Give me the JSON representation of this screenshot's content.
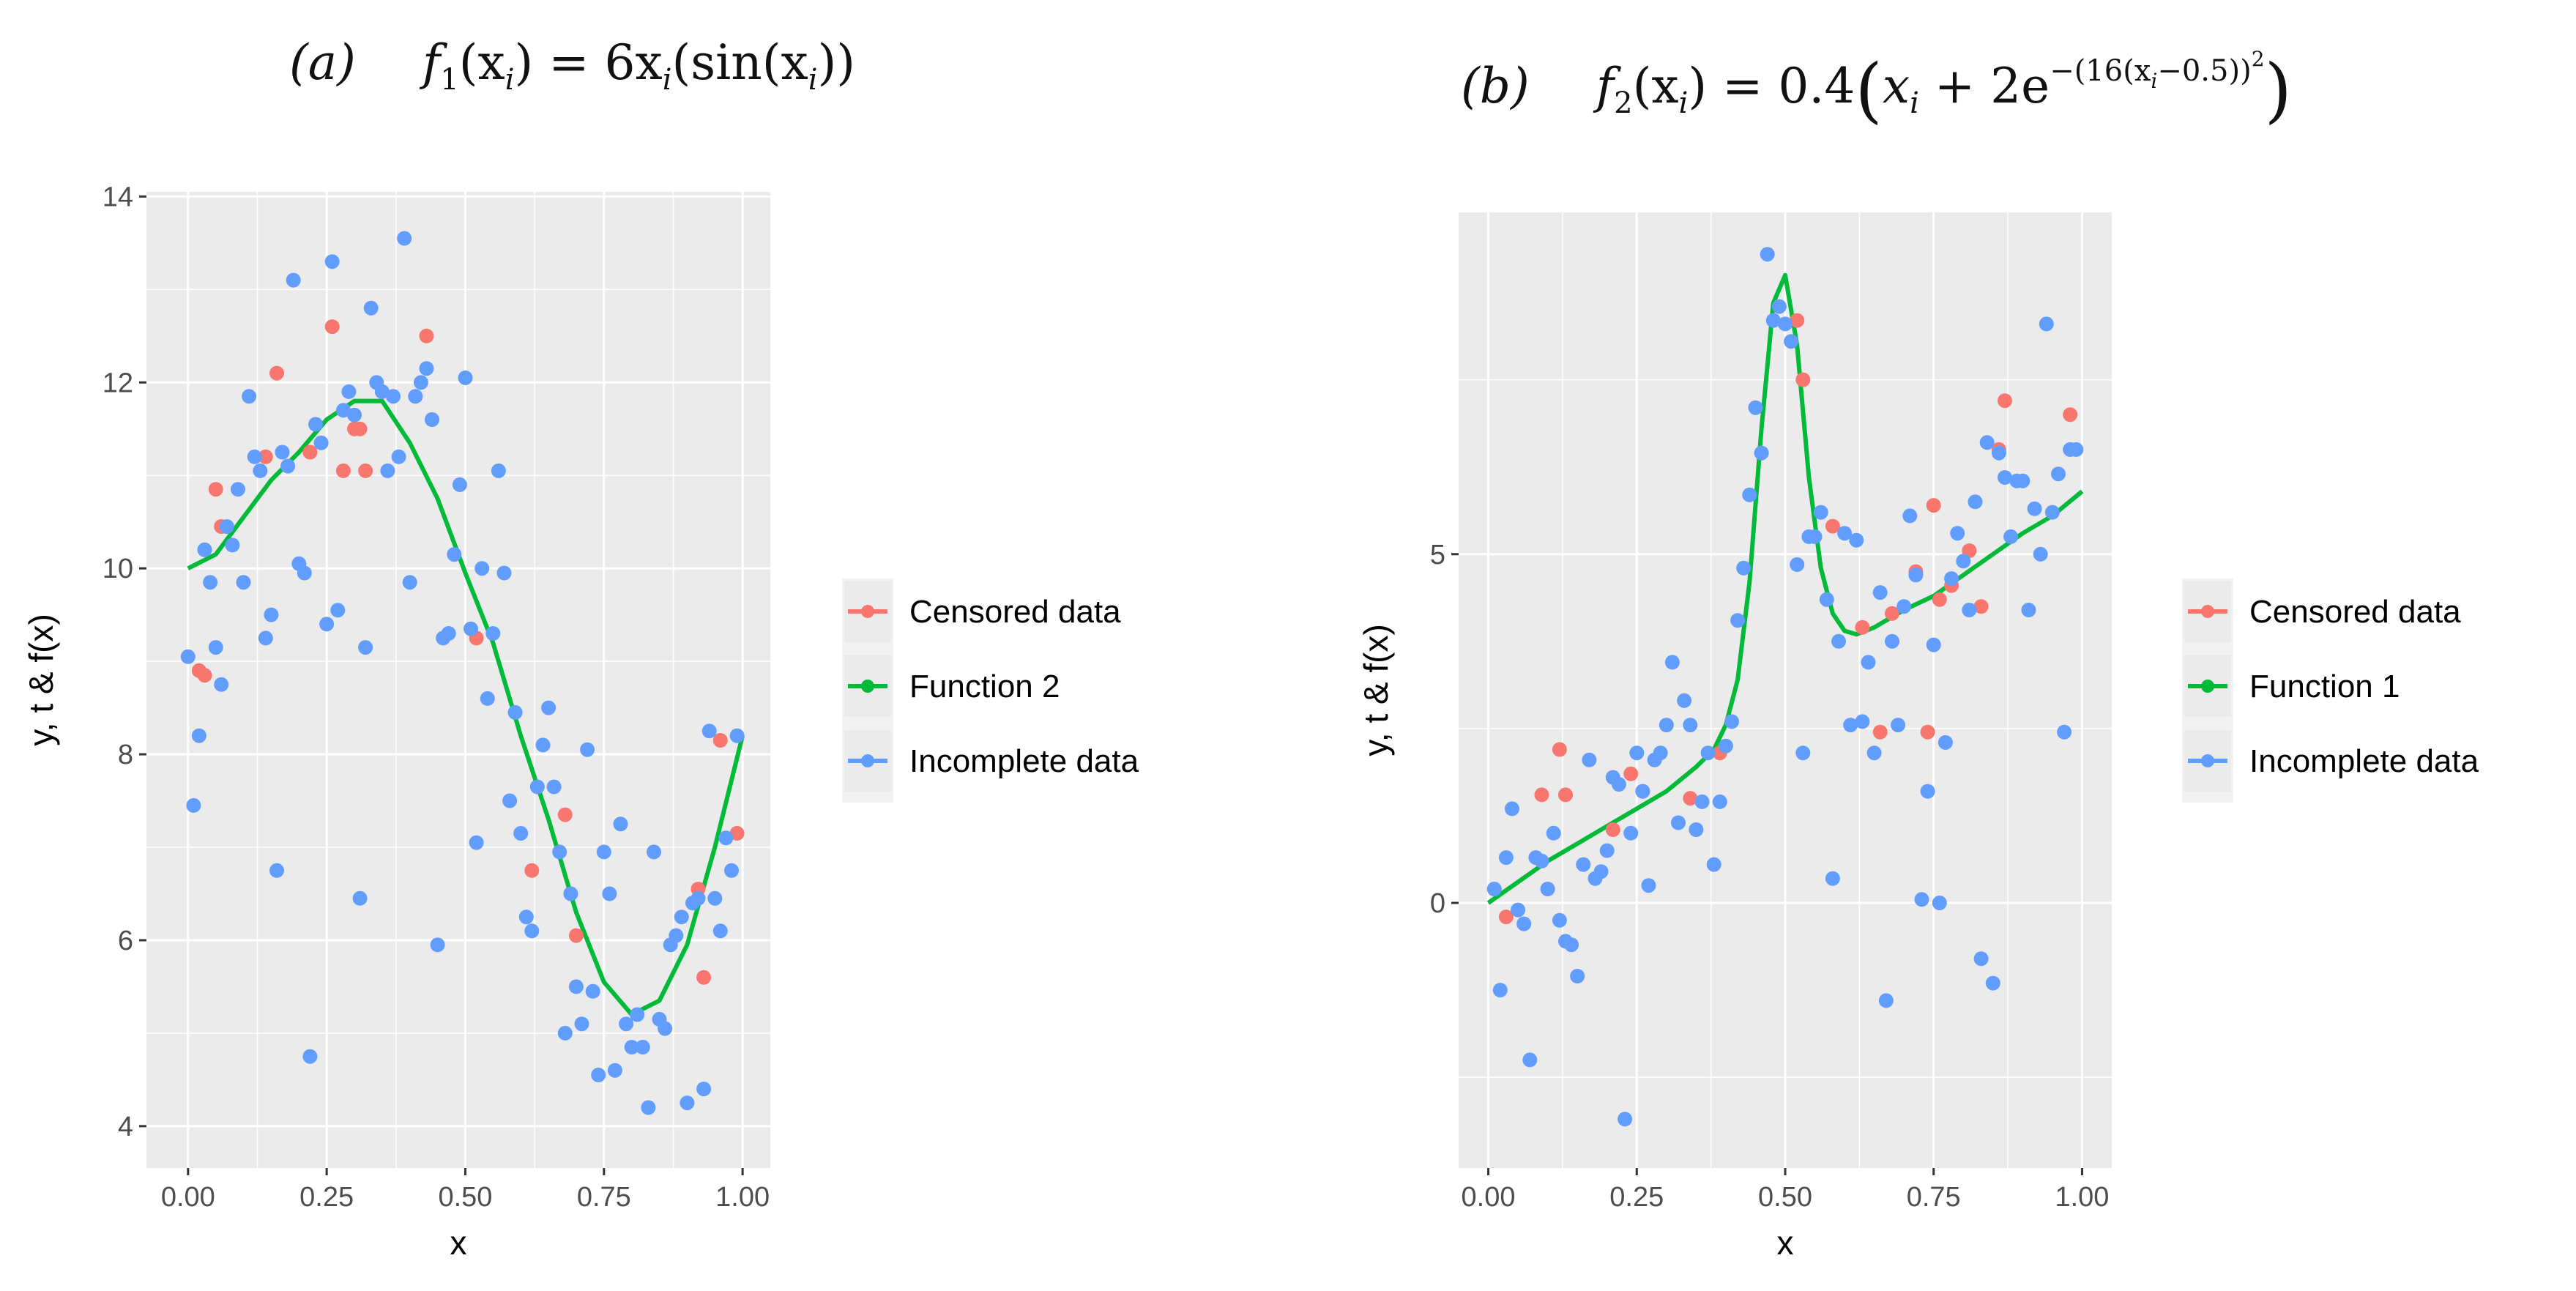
{
  "chart_data": [
    {
      "type": "scatter",
      "panel_label": "(a)",
      "formula": {
        "lhs": "f",
        "lhs_sub": "1",
        "arg": "(x",
        "arg_sub": "i",
        "rhs_text": ") = 6x",
        "rhs_sub": "i",
        "rhs_tail": "(sin(x",
        "rhs_sub2": "i",
        "rhs_end": "))"
      },
      "xlabel": "x",
      "ylabel": "y, t & f(x)",
      "xlim": [
        -0.075,
        1.05
      ],
      "ylim": [
        3.55,
        14.05
      ],
      "xticks": [
        0,
        0.25,
        0.5,
        0.75,
        1
      ],
      "xtick_labels": [
        "0.00",
        "0.25",
        "0.50",
        "0.75",
        "1.00"
      ],
      "yticks": [
        4,
        6,
        8,
        10,
        12,
        14
      ],
      "ytick_labels": [
        "4",
        "6",
        "8",
        "10",
        "12",
        "14"
      ],
      "colors": {
        "censored": "#F8766D",
        "function": "#00BA38",
        "incomplete": "#619CFF",
        "panel": "#EBEBEB",
        "grid": "#FFFFFF"
      },
      "legend": [
        {
          "key": "censored",
          "label": "Censored data"
        },
        {
          "key": "function",
          "label": "Function 2"
        },
        {
          "key": "incomplete",
          "label": "Incomplete data"
        }
      ],
      "series": [
        {
          "name": "Function 2",
          "key": "function",
          "mode": "line",
          "x": [
            0,
            0.05,
            0.1,
            0.15,
            0.2,
            0.25,
            0.3,
            0.35,
            0.4,
            0.45,
            0.5,
            0.55,
            0.6,
            0.65,
            0.7,
            0.75,
            0.8,
            0.85,
            0.9,
            0.95,
            1.0
          ],
          "y": [
            10.0,
            10.15,
            10.55,
            10.95,
            11.25,
            11.6,
            11.8,
            11.8,
            11.35,
            10.75,
            9.95,
            9.2,
            8.2,
            7.3,
            6.3,
            5.55,
            5.2,
            5.35,
            5.95,
            7.0,
            8.2
          ]
        },
        {
          "name": "Censored data",
          "key": "censored",
          "mode": "points",
          "x": [
            0.02,
            0.03,
            0.05,
            0.06,
            0.14,
            0.16,
            0.22,
            0.26,
            0.28,
            0.3,
            0.31,
            0.32,
            0.43,
            0.44,
            0.52,
            0.62,
            0.68,
            0.7,
            0.92,
            0.93,
            0.96,
            0.99
          ],
          "y": [
            8.9,
            8.85,
            10.85,
            10.45,
            11.2,
            12.1,
            11.25,
            12.6,
            11.05,
            11.5,
            11.5,
            11.05,
            12.5,
            11.6,
            9.25,
            6.75,
            7.35,
            6.05,
            6.55,
            5.6,
            8.15,
            7.15
          ]
        },
        {
          "name": "Incomplete data",
          "key": "incomplete",
          "mode": "points",
          "x": [
            0.0,
            0.01,
            0.02,
            0.03,
            0.04,
            0.05,
            0.06,
            0.07,
            0.08,
            0.09,
            0.1,
            0.11,
            0.12,
            0.13,
            0.14,
            0.15,
            0.16,
            0.17,
            0.18,
            0.19,
            0.2,
            0.21,
            0.22,
            0.23,
            0.24,
            0.25,
            0.26,
            0.27,
            0.28,
            0.29,
            0.3,
            0.31,
            0.32,
            0.33,
            0.34,
            0.35,
            0.36,
            0.37,
            0.38,
            0.39,
            0.4,
            0.41,
            0.42,
            0.43,
            0.44,
            0.45,
            0.46,
            0.47,
            0.48,
            0.49,
            0.5,
            0.51,
            0.52,
            0.53,
            0.54,
            0.55,
            0.56,
            0.57,
            0.58,
            0.59,
            0.6,
            0.61,
            0.62,
            0.63,
            0.64,
            0.65,
            0.66,
            0.67,
            0.68,
            0.69,
            0.7,
            0.71,
            0.72,
            0.73,
            0.74,
            0.75,
            0.76,
            0.77,
            0.78,
            0.79,
            0.8,
            0.81,
            0.82,
            0.83,
            0.84,
            0.85,
            0.86,
            0.87,
            0.88,
            0.89,
            0.9,
            0.91,
            0.92,
            0.93,
            0.94,
            0.95,
            0.96,
            0.97,
            0.98,
            0.99
          ],
          "y": [
            9.05,
            7.45,
            8.2,
            10.2,
            9.85,
            9.15,
            8.75,
            10.45,
            10.25,
            10.85,
            9.85,
            11.85,
            11.2,
            11.05,
            9.25,
            9.5,
            6.75,
            11.25,
            11.1,
            13.1,
            10.05,
            9.95,
            4.75,
            11.55,
            11.35,
            9.4,
            13.3,
            9.55,
            11.7,
            11.9,
            11.65,
            6.45,
            9.15,
            12.8,
            12.0,
            11.9,
            11.05,
            11.85,
            11.2,
            13.55,
            9.85,
            11.85,
            12.0,
            12.15,
            11.6,
            5.95,
            9.25,
            9.3,
            10.15,
            10.9,
            12.05,
            9.35,
            7.05,
            10.0,
            8.6,
            9.3,
            11.05,
            9.95,
            7.5,
            8.45,
            7.15,
            6.25,
            6.1,
            7.65,
            8.1,
            8.5,
            7.65,
            6.95,
            5.0,
            6.5,
            5.5,
            5.1,
            8.05,
            5.45,
            4.55,
            6.95,
            6.5,
            4.6,
            7.25,
            5.1,
            4.85,
            5.2,
            4.85,
            4.2,
            6.95,
            5.15,
            5.05,
            5.95,
            6.05,
            6.25,
            4.25,
            6.4,
            6.45,
            4.4,
            8.25,
            6.45,
            6.1,
            7.1,
            6.75,
            8.2
          ]
        }
      ]
    },
    {
      "type": "scatter",
      "panel_label": "(b)",
      "formula": {
        "lhs": "f",
        "lhs_sub": "2",
        "arg": "(x",
        "arg_sub": "i",
        "rhs_text": ") = 0.4",
        "paren_open": "(",
        "inner_x": "x",
        "inner_x_sub": "i",
        "plus_text": " + 2e",
        "exp_text": "−(16(x",
        "exp_sub": "i",
        "exp_tail": "−0.5))",
        "exp_pow": "2",
        "paren_close": ")"
      },
      "xlabel": "x",
      "ylabel": "y, t & f(x)",
      "xlim": [
        -0.05,
        1.05
      ],
      "ylim": [
        -3.8,
        9.9
      ],
      "xticks": [
        0,
        0.25,
        0.5,
        0.75,
        1
      ],
      "xtick_labels": [
        "0.00",
        "0.25",
        "0.50",
        "0.75",
        "1.00"
      ],
      "yticks": [
        0,
        5
      ],
      "ytick_labels": [
        "0",
        "5"
      ],
      "yminor": [
        -2.5,
        2.5,
        7.5
      ],
      "colors": {
        "censored": "#F8766D",
        "function": "#00BA38",
        "incomplete": "#619CFF",
        "panel": "#EBEBEB",
        "grid": "#FFFFFF"
      },
      "legend": [
        {
          "key": "censored",
          "label": "Censored data"
        },
        {
          "key": "function",
          "label": "Function 1"
        },
        {
          "key": "incomplete",
          "label": "Incomplete data"
        }
      ],
      "series": [
        {
          "name": "Function 1",
          "key": "function",
          "mode": "line",
          "x": [
            0,
            0.05,
            0.1,
            0.15,
            0.2,
            0.25,
            0.3,
            0.35,
            0.38,
            0.4,
            0.42,
            0.44,
            0.46,
            0.48,
            0.5,
            0.52,
            0.54,
            0.56,
            0.58,
            0.6,
            0.62,
            0.65,
            0.7,
            0.75,
            0.8,
            0.85,
            0.9,
            0.95,
            1.0
          ],
          "y": [
            0.0,
            0.3,
            0.6,
            0.85,
            1.1,
            1.35,
            1.6,
            1.95,
            2.2,
            2.55,
            3.2,
            4.6,
            6.8,
            8.6,
            9.0,
            8.0,
            6.1,
            4.8,
            4.15,
            3.9,
            3.85,
            3.95,
            4.2,
            4.4,
            4.7,
            5.0,
            5.3,
            5.55,
            5.9
          ]
        },
        {
          "name": "Censored data",
          "key": "censored",
          "mode": "points",
          "x": [
            0.03,
            0.09,
            0.12,
            0.13,
            0.21,
            0.24,
            0.26,
            0.34,
            0.39,
            0.52,
            0.53,
            0.58,
            0.63,
            0.66,
            0.68,
            0.72,
            0.74,
            0.75,
            0.76,
            0.78,
            0.81,
            0.83,
            0.86,
            0.87,
            0.98
          ],
          "y": [
            -0.2,
            1.55,
            2.2,
            1.55,
            1.05,
            1.85,
            1.6,
            1.5,
            2.15,
            8.35,
            7.5,
            5.4,
            3.95,
            2.45,
            4.15,
            4.75,
            2.45,
            5.7,
            4.35,
            4.55,
            5.05,
            4.25,
            6.5,
            7.2,
            7.0
          ]
        },
        {
          "name": "Incomplete data",
          "key": "incomplete",
          "mode": "points",
          "x": [
            0.01,
            0.02,
            0.03,
            0.04,
            0.05,
            0.06,
            0.07,
            0.08,
            0.09,
            0.1,
            0.11,
            0.12,
            0.13,
            0.14,
            0.15,
            0.16,
            0.17,
            0.18,
            0.19,
            0.2,
            0.21,
            0.22,
            0.23,
            0.24,
            0.25,
            0.26,
            0.27,
            0.28,
            0.29,
            0.3,
            0.31,
            0.32,
            0.33,
            0.34,
            0.35,
            0.36,
            0.37,
            0.38,
            0.39,
            0.4,
            0.41,
            0.42,
            0.43,
            0.44,
            0.45,
            0.46,
            0.47,
            0.48,
            0.49,
            0.5,
            0.51,
            0.52,
            0.53,
            0.54,
            0.55,
            0.56,
            0.57,
            0.58,
            0.59,
            0.6,
            0.61,
            0.62,
            0.63,
            0.64,
            0.65,
            0.66,
            0.67,
            0.68,
            0.69,
            0.7,
            0.71,
            0.72,
            0.73,
            0.74,
            0.75,
            0.76,
            0.77,
            0.78,
            0.79,
            0.8,
            0.81,
            0.82,
            0.83,
            0.84,
            0.85,
            0.86,
            0.87,
            0.88,
            0.89,
            0.9,
            0.91,
            0.92,
            0.93,
            0.94,
            0.95,
            0.96,
            0.97,
            0.98,
            0.99
          ],
          "y": [
            0.2,
            -1.25,
            0.65,
            1.35,
            -0.1,
            -0.3,
            -2.25,
            0.65,
            0.6,
            0.2,
            1.0,
            -0.25,
            -0.55,
            -0.6,
            -1.05,
            0.55,
            2.05,
            0.35,
            0.45,
            0.75,
            1.8,
            1.7,
            -3.1,
            1.0,
            2.15,
            1.6,
            0.25,
            2.05,
            2.15,
            2.55,
            3.45,
            1.15,
            2.9,
            2.55,
            1.05,
            1.45,
            2.15,
            0.55,
            1.45,
            2.25,
            2.6,
            4.05,
            4.8,
            5.85,
            7.1,
            6.45,
            9.3,
            8.35,
            8.55,
            8.3,
            8.05,
            4.85,
            2.15,
            5.25,
            5.25,
            5.6,
            4.35,
            0.35,
            3.75,
            5.3,
            2.55,
            5.2,
            2.6,
            3.45,
            2.15,
            4.45,
            -1.4,
            3.75,
            2.55,
            4.25,
            5.55,
            4.7,
            0.05,
            1.6,
            3.7,
            0.0,
            2.3,
            4.65,
            5.3,
            4.9,
            4.2,
            5.75,
            -0.8,
            6.6,
            -1.15,
            6.45,
            6.1,
            5.25,
            6.05,
            6.05,
            4.2,
            5.65,
            5.0,
            8.3,
            5.6,
            6.15,
            2.45,
            6.5,
            6.5
          ]
        }
      ]
    }
  ]
}
